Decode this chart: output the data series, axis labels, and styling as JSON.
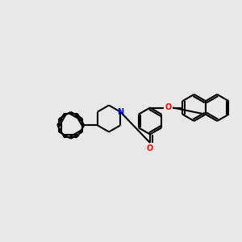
{
  "background_color": "#e8e8e8",
  "bond_color": "#000000",
  "bond_width": 1.5,
  "N_color": "#0000ff",
  "O_color": "#ff0000",
  "font_size": 7.0,
  "figsize": [
    3.0,
    3.0
  ],
  "dpi": 100,
  "xlim": [
    0,
    10
  ],
  "ylim": [
    2,
    8
  ]
}
